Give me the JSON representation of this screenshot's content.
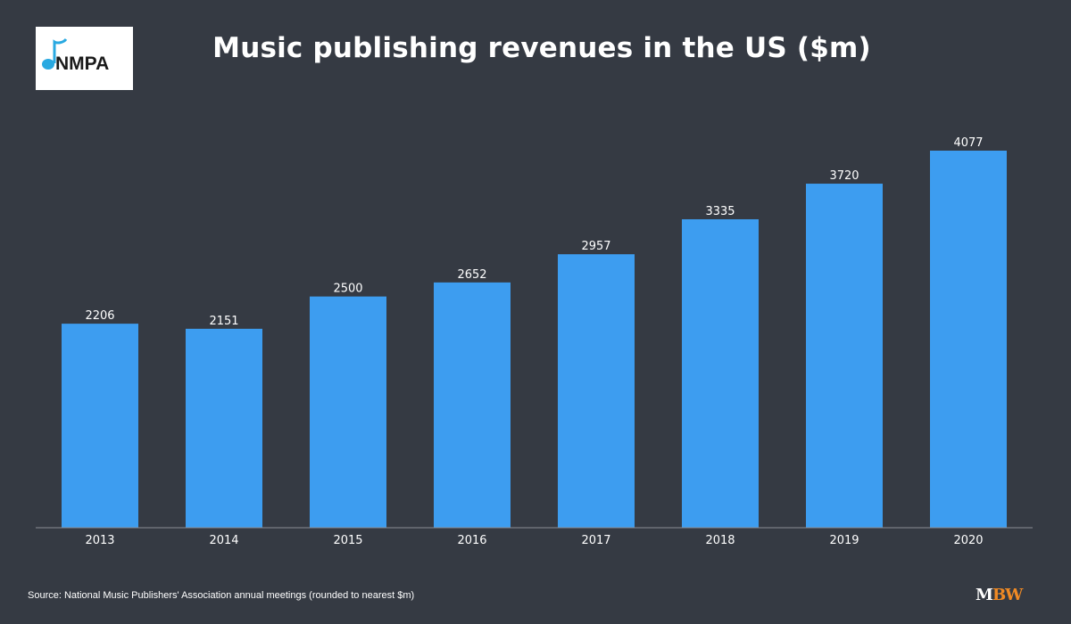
{
  "logo": {
    "text": "NMPA",
    "icon": "music-note-icon",
    "colors": {
      "note": "#29a9e1",
      "text": "#1a1a1a"
    }
  },
  "title": "Music publishing revenues in the US ($m)",
  "source": "Source: National Music Publishers' Association annual meetings (rounded to nearest $m)",
  "brand": {
    "part1": "M",
    "part2": "BW",
    "colors": {
      "part1": "#ffffff",
      "part2": "#f08a24"
    }
  },
  "colors": {
    "background": "#353a43",
    "bar": "#3d9df0",
    "axis": "#8a8f96",
    "text": "#ffffff"
  },
  "chart_data": {
    "type": "bar",
    "title": "Music publishing revenues in the US ($m)",
    "categories": [
      "2013",
      "2014",
      "2015",
      "2016",
      "2017",
      "2018",
      "2019",
      "2020"
    ],
    "values": [
      2206,
      2151,
      2500,
      2652,
      2957,
      3335,
      3720,
      4077
    ],
    "xlabel": "",
    "ylabel": "",
    "ylim": [
      0,
      4077
    ],
    "grid": false,
    "data_labels": true
  }
}
